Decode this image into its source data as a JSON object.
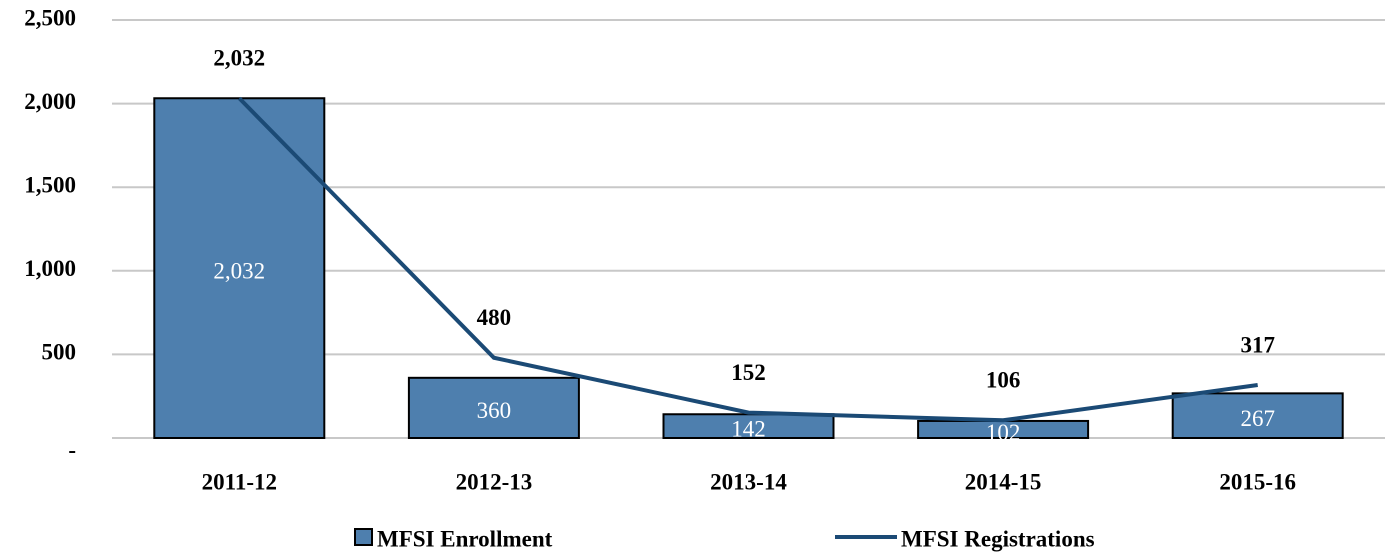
{
  "chart_data": {
    "type": "bar",
    "categories": [
      "2011-12",
      "2012-13",
      "2013-14",
      "2014-15",
      "2015-16"
    ],
    "series": [
      {
        "name": "MFSI Enrollment",
        "type": "bar",
        "color": "#4e7fae",
        "values": [
          2032,
          360,
          142,
          102,
          267
        ],
        "value_labels": [
          "2,032",
          "360",
          "142",
          "102",
          "267"
        ]
      },
      {
        "name": "MFSI Registrations",
        "type": "line",
        "color": "#1b4a75",
        "values": [
          2032,
          480,
          152,
          106,
          317
        ],
        "value_labels": [
          "2,032",
          "480",
          "152",
          "106",
          "317"
        ]
      }
    ],
    "ylim": [
      0,
      2500
    ],
    "yticks": [
      {
        "value": 0,
        "label": "-"
      },
      500,
      {
        "value": 1000,
        "label": "1,000"
      },
      {
        "value": 1500,
        "label": "1,500"
      },
      {
        "value": 2000,
        "label": "2,000"
      },
      {
        "value": 2500,
        "label": "2,500"
      }
    ],
    "grid": true,
    "legend": "bottom"
  }
}
